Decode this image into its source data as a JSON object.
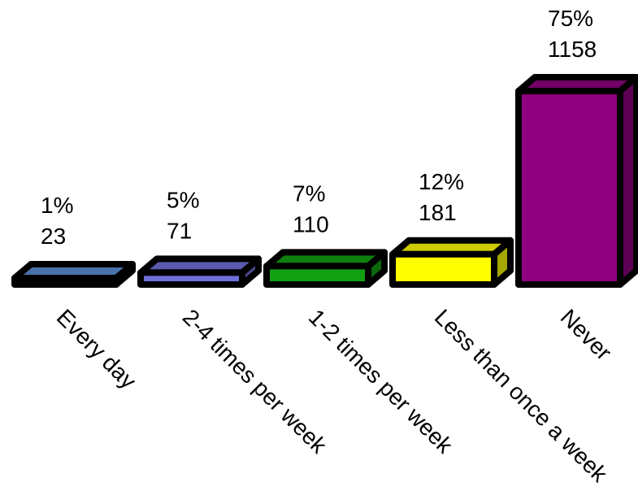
{
  "chart_data": {
    "type": "bar",
    "style": "3d",
    "categories": [
      "Every day",
      "2-4 times per week",
      "1-2 times per week",
      "Less than once a week",
      "Never"
    ],
    "percent_labels": [
      "1%",
      "5%",
      "7%",
      "12%",
      "75%"
    ],
    "values": [
      23,
      71,
      110,
      181,
      1158
    ],
    "value_labels": [
      "23",
      "71",
      "110",
      "181",
      "1158"
    ],
    "percents": [
      1,
      5,
      7,
      12,
      75
    ],
    "colors": [
      "#5b8fd6",
      "#6f6fdc",
      "#12a012",
      "#ffff00",
      "#8f0080"
    ],
    "grid": false,
    "legend": "none"
  }
}
